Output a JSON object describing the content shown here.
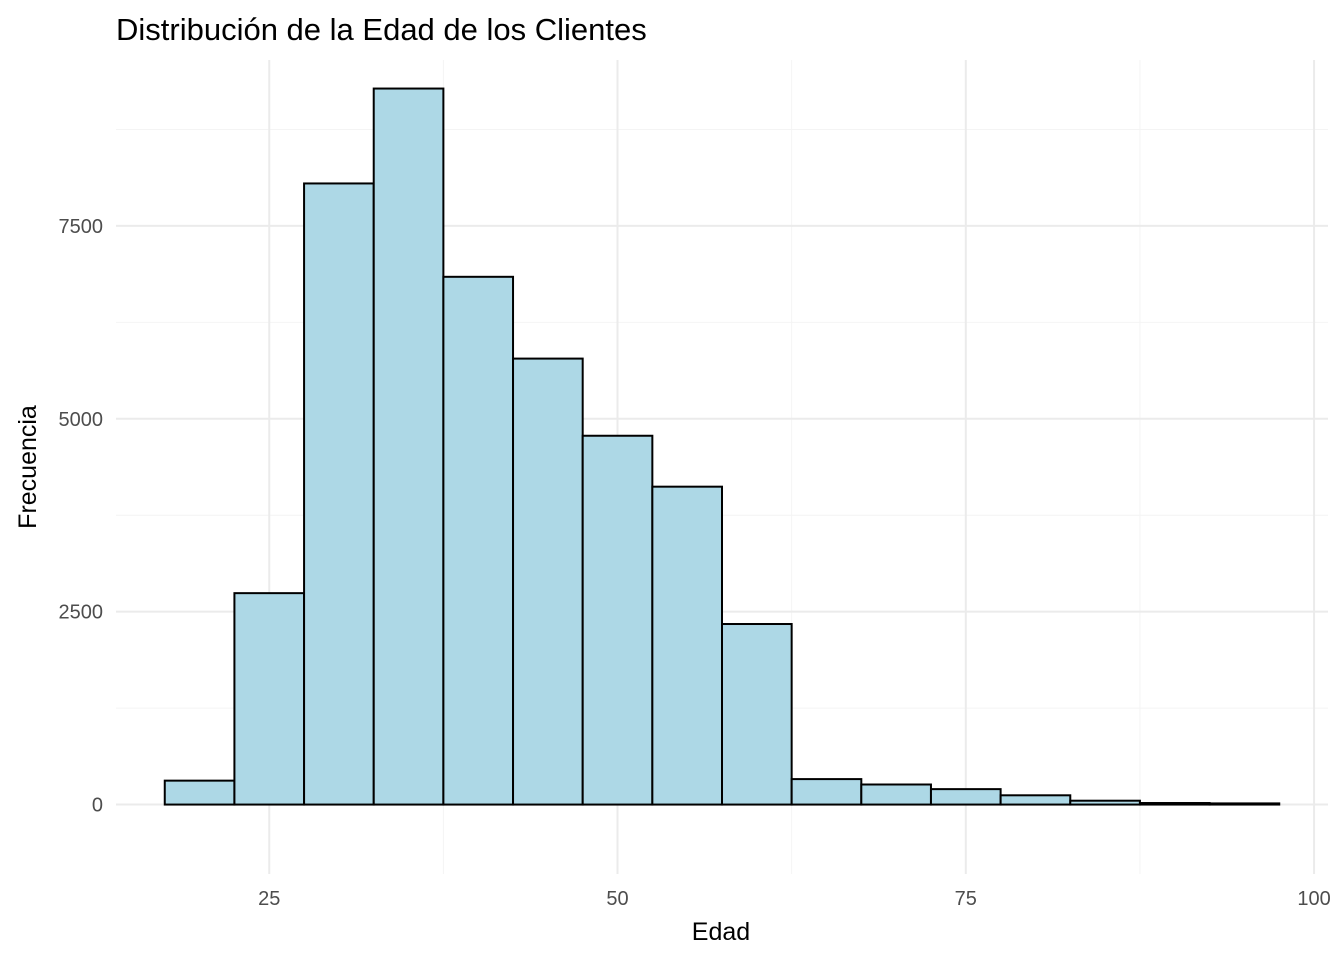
{
  "chart_data": {
    "type": "bar",
    "title": "Distribución de la Edad de los Clientes",
    "xlabel": "Edad",
    "ylabel": "Frecuencia",
    "xlim": [
      14,
      101
    ],
    "ylim": [
      -900,
      9650
    ],
    "x_ticks": [
      25,
      50,
      75,
      100
    ],
    "x_tick_labels": [
      "25",
      "50",
      "75",
      "100"
    ],
    "y_ticks": [
      0,
      2500,
      5000,
      7500
    ],
    "y_tick_labels": [
      "0",
      "2500",
      "5000",
      "7500"
    ],
    "grid": true,
    "bin_width": 5,
    "bins": [
      {
        "start": 17.5,
        "end": 22.5,
        "value": 310
      },
      {
        "start": 22.5,
        "end": 27.5,
        "value": 2740
      },
      {
        "start": 27.5,
        "end": 32.5,
        "value": 8050
      },
      {
        "start": 32.5,
        "end": 37.5,
        "value": 9280
      },
      {
        "start": 37.5,
        "end": 42.5,
        "value": 6840
      },
      {
        "start": 42.5,
        "end": 47.5,
        "value": 5780
      },
      {
        "start": 47.5,
        "end": 52.5,
        "value": 4780
      },
      {
        "start": 52.5,
        "end": 57.5,
        "value": 4120
      },
      {
        "start": 57.5,
        "end": 62.5,
        "value": 2340
      },
      {
        "start": 62.5,
        "end": 67.5,
        "value": 330
      },
      {
        "start": 67.5,
        "end": 72.5,
        "value": 260
      },
      {
        "start": 72.5,
        "end": 77.5,
        "value": 200
      },
      {
        "start": 77.5,
        "end": 82.5,
        "value": 120
      },
      {
        "start": 82.5,
        "end": 87.5,
        "value": 50
      },
      {
        "start": 87.5,
        "end": 92.5,
        "value": 20
      },
      {
        "start": 92.5,
        "end": 97.5,
        "value": 15
      }
    ],
    "colors": {
      "fill": "#add8e6",
      "stroke": "#000000"
    }
  }
}
